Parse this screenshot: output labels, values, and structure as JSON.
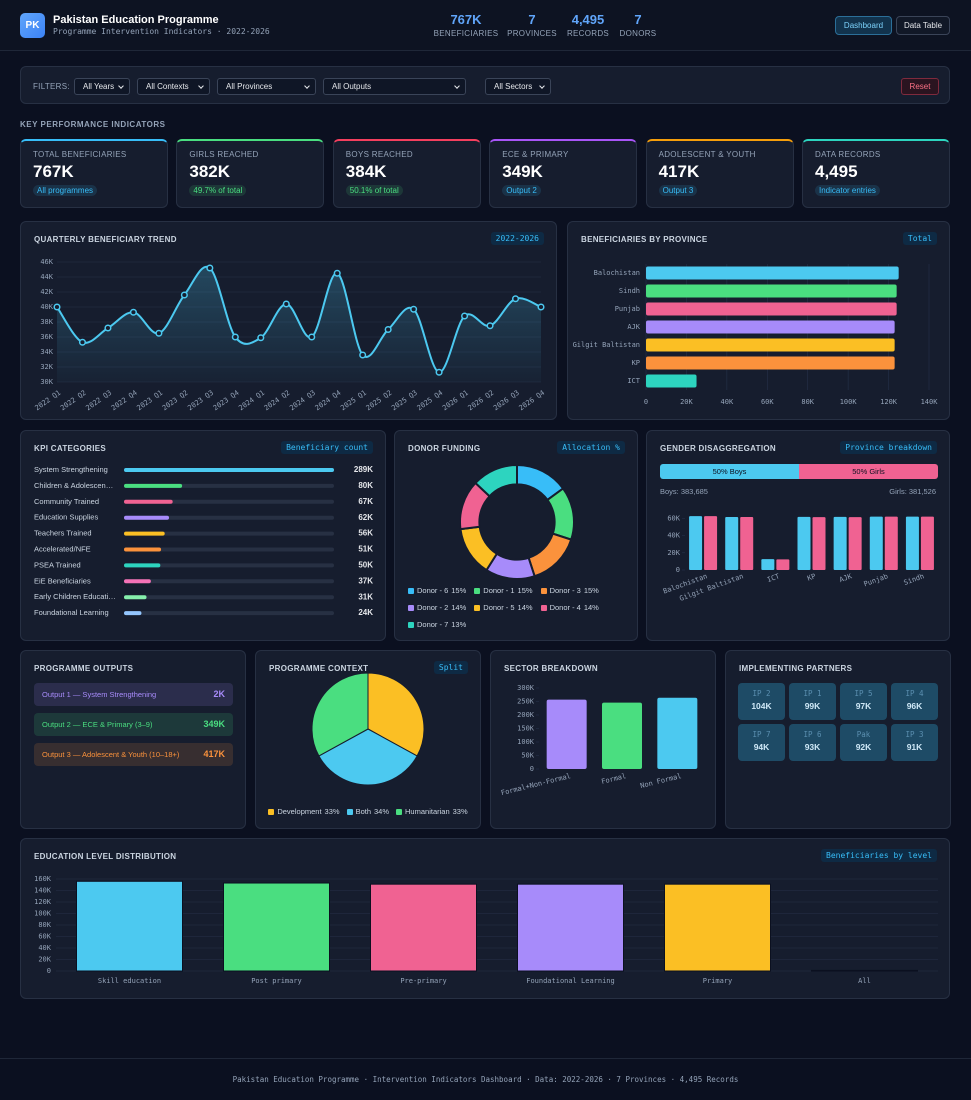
{
  "header": {
    "logo": "PK",
    "title": "Pakistan Education Programme",
    "subtitle": "Programme Intervention Indicators · 2022-2026",
    "stats": [
      {
        "value": "767K",
        "label": "BENEFICIARIES"
      },
      {
        "value": "7",
        "label": "PROVINCES"
      },
      {
        "value": "4,495",
        "label": "RECORDS"
      },
      {
        "value": "7",
        "label": "DONORS"
      }
    ],
    "tabs": [
      "Dashboard",
      "Data Table"
    ]
  },
  "filters": {
    "label": "FILTERS:",
    "selects": [
      "All Years",
      "All Contexts",
      "All Provinces",
      "All Outputs",
      "All Sectors"
    ],
    "reset": "Reset"
  },
  "kpi": {
    "heading": "KEY PERFORMANCE INDICATORS",
    "cards": [
      {
        "label": "TOTAL BENEFICIARIES",
        "value": "767K",
        "note": "All programmes",
        "color": "#38bdf8",
        "note_color": "#38bdf8"
      },
      {
        "label": "GIRLS REACHED",
        "value": "382K",
        "note": "49.7% of total",
        "color": "#4ade80",
        "note_color": "#4ade80"
      },
      {
        "label": "BOYS REACHED",
        "value": "384K",
        "note": "50.1% of total",
        "color": "#f43f5e",
        "note_color": "#4ade80"
      },
      {
        "label": "ECE & PRIMARY",
        "value": "349K",
        "note": "Output 2",
        "color": "#a855f7",
        "note_color": "#38bdf8"
      },
      {
        "label": "ADOLESCENT & YOUTH",
        "value": "417K",
        "note": "Output 3",
        "color": "#f59e0b",
        "note_color": "#38bdf8"
      },
      {
        "label": "DATA RECORDS",
        "value": "4,495",
        "note": "Indicator entries",
        "color": "#2dd4bf",
        "note_color": "#38bdf8"
      }
    ]
  },
  "trend": {
    "type": "line",
    "title": "QUARTERLY BENEFICIARY TREND",
    "badge": "2022-2026",
    "categories": [
      "2022 Q1",
      "2022 Q2",
      "2022 Q3",
      "2022 Q4",
      "2023 Q1",
      "2023 Q2",
      "2023 Q3",
      "2023 Q4",
      "2024 Q1",
      "2024 Q2",
      "2024 Q3",
      "2024 Q4",
      "2025 Q1",
      "2025 Q2",
      "2025 Q3",
      "2025 Q4",
      "2026 Q1",
      "2026 Q2",
      "2026 Q3",
      "2026 Q4"
    ],
    "values": [
      40000,
      35300,
      37200,
      39300,
      36500,
      41600,
      45200,
      36000,
      35900,
      40400,
      36000,
      44500,
      33600,
      37000,
      39700,
      31300,
      38800,
      37500,
      41100,
      40000
    ],
    "color": "#4cc9f0",
    "ylim": [
      30000,
      46000
    ],
    "yticks": [
      {
        "value": 30000,
        "label": "30K"
      },
      {
        "value": 32000,
        "label": "32K"
      },
      {
        "value": 34000,
        "label": "34K"
      },
      {
        "value": 36000,
        "label": "36K"
      },
      {
        "value": 38000,
        "label": "38K"
      },
      {
        "value": 40000,
        "label": "40K"
      },
      {
        "value": 42000,
        "label": "42K"
      },
      {
        "value": 44000,
        "label": "44K"
      },
      {
        "value": 46000,
        "label": "46K"
      }
    ],
    "grid": true
  },
  "provinces": {
    "type": "bar",
    "orientation": "horizontal",
    "title": "BENEFICIARIES BY PROVINCE",
    "badge": "Total",
    "categories": [
      "Balochistan",
      "Sindh",
      "Punjab",
      "AJK",
      "Gilgit Baltistan",
      "KP",
      "ICT"
    ],
    "values": [
      125000,
      124000,
      124000,
      123000,
      123000,
      123000,
      25000
    ],
    "colors": [
      "#4cc9f0",
      "#4ade80",
      "#f06292",
      "#a78bfa",
      "#fbbf24",
      "#fb923c",
      "#2dd4bf"
    ],
    "xlim": [
      0,
      140000
    ],
    "xticks": [
      0,
      {
        "value": 20000,
        "label": "20K"
      },
      {
        "value": 40000,
        "label": "40K"
      },
      {
        "value": 60000,
        "label": "60K"
      },
      {
        "value": 80000,
        "label": "80K"
      },
      {
        "value": 100000,
        "label": "100K"
      },
      {
        "value": 120000,
        "label": "120K"
      },
      {
        "value": 140000,
        "label": "140K"
      }
    ],
    "grid": true
  },
  "kpi_categories": {
    "type": "bar",
    "title": "KPI CATEGORIES",
    "badge": "Beneficiary count",
    "categories": [
      "System Strengthening",
      "Children & Adolescen…",
      "Community Trained",
      "Education Supplies",
      "Teachers Trained",
      "Accelerated/NFE",
      "PSEA Trained",
      "EiE Beneficiaries",
      "Early Children Educati…",
      "Foundational Learning"
    ],
    "values": [
      289000,
      80000,
      67000,
      62000,
      56000,
      51000,
      50000,
      37000,
      31000,
      24000
    ],
    "value_labels": [
      "289K",
      "80K",
      "67K",
      "62K",
      "56K",
      "51K",
      "50K",
      "37K",
      "31K",
      "24K"
    ],
    "colors": [
      "#4cc9f0",
      "#4ade80",
      "#f06292",
      "#a78bfa",
      "#fbbf24",
      "#fb923c",
      "#2dd4bf",
      "#f472b6",
      "#86efac",
      "#93c5fd"
    ]
  },
  "donors": {
    "type": "donut",
    "title": "DONOR FUNDING",
    "badge": "Allocation %",
    "categories": [
      "Donor - 6",
      "Donor - 1",
      "Donor - 3",
      "Donor - 2",
      "Donor - 5",
      "Donor - 4",
      "Donor - 7"
    ],
    "values": [
      15,
      15,
      15,
      14,
      14,
      14,
      13
    ],
    "value_labels": [
      "15%",
      "15%",
      "15%",
      "14%",
      "14%",
      "14%",
      "13%"
    ],
    "colors": [
      "#38bdf8",
      "#4ade80",
      "#fb923c",
      "#a78bfa",
      "#fbbf24",
      "#f06292",
      "#2dd4bf"
    ]
  },
  "gender": {
    "title": "GENDER DISAGGREGATION",
    "badge": "Province breakdown",
    "split": {
      "values": [
        50,
        50
      ],
      "value_labels": [
        "50% Boys",
        "50% Girls"
      ],
      "colors": [
        "#4cc9f0",
        "#f06292"
      ]
    },
    "totals": [
      "Boys: 383,685",
      "Girls: 381,526"
    ],
    "chart": {
      "type": "bar",
      "categories": [
        "Balochistan",
        "Gilgit Baltistan",
        "ICT",
        "KP",
        "AJK",
        "Punjab",
        "Sindh"
      ],
      "series": [
        {
          "color": "#4cc9f0",
          "values": [
            62500,
            61500,
            12600,
            61600,
            61600,
            62000,
            62000
          ]
        },
        {
          "color": "#f06292",
          "values": [
            62500,
            61500,
            12400,
            61400,
            61400,
            62000,
            62000
          ]
        }
      ],
      "ylim": [
        0,
        65000
      ],
      "yticks": [
        0,
        {
          "value": 20000,
          "label": "20K"
        },
        {
          "value": 40000,
          "label": "40K"
        },
        {
          "value": 60000,
          "label": "60K"
        }
      ]
    }
  },
  "outputs": {
    "title": "PROGRAMME OUTPUTS",
    "items": [
      {
        "label": "Output 1 — System Strengthening",
        "value": "2K",
        "color": "#a78bfa"
      },
      {
        "label": "Output 2 — ECE & Primary (3–9)",
        "value": "349K",
        "color": "#4ade80"
      },
      {
        "label": "Output 3 — Adolescent & Youth (10–18+)",
        "value": "417K",
        "color": "#fb923c"
      }
    ]
  },
  "context": {
    "type": "pie",
    "title": "PROGRAMME CONTEXT",
    "badge": "Split",
    "categories": [
      "Development",
      "Both",
      "Humanitarian"
    ],
    "values": [
      33,
      34,
      33
    ],
    "value_labels": [
      "33%",
      "34%",
      "33%"
    ],
    "colors": [
      "#fbbf24",
      "#4cc9f0",
      "#4ade80"
    ]
  },
  "sectors": {
    "type": "bar",
    "title": "SECTOR BREAKDOWN",
    "categories": [
      "Formal+Non-Formal",
      "Formal",
      "Non Formal"
    ],
    "values": [
      257000,
      246000,
      264000
    ],
    "colors": [
      "#a78bfa",
      "#4ade80",
      "#4cc9f0"
    ],
    "ylim": [
      0,
      300000
    ],
    "yticks": [
      0,
      {
        "value": 50000,
        "label": "50K"
      },
      {
        "value": 100000,
        "label": "100K"
      },
      {
        "value": 150000,
        "label": "150K"
      },
      {
        "value": 200000,
        "label": "200K"
      },
      {
        "value": 250000,
        "label": "250K"
      },
      {
        "value": 300000,
        "label": "300K"
      }
    ]
  },
  "partners": {
    "title": "IMPLEMENTING PARTNERS",
    "items": [
      {
        "name": "IP 2",
        "value": "104K"
      },
      {
        "name": "IP 1",
        "value": "99K"
      },
      {
        "name": "IP 5",
        "value": "97K"
      },
      {
        "name": "IP 4",
        "value": "96K"
      },
      {
        "name": "IP 7",
        "value": "94K"
      },
      {
        "name": "IP 6",
        "value": "93K"
      },
      {
        "name": "Pak",
        "value": "92K"
      },
      {
        "name": "IP 3",
        "value": "91K"
      }
    ]
  },
  "education": {
    "type": "bar",
    "title": "EDUCATION LEVEL DISTRIBUTION",
    "badge": "Beneficiaries by level",
    "categories": [
      "Skill education",
      "Post primary",
      "Pre-primary",
      "Foundational Learning",
      "Primary",
      "All"
    ],
    "values": [
      156000,
      153000,
      151000,
      151000,
      151000,
      1000
    ],
    "colors": [
      "#4cc9f0",
      "#4ade80",
      "#f06292",
      "#a78bfa",
      "#fbbf24",
      "#fb923c"
    ],
    "ylim": [
      0,
      160000
    ],
    "yticks": [
      0,
      {
        "value": 20000,
        "label": "20K"
      },
      {
        "value": 40000,
        "label": "40K"
      },
      {
        "value": 60000,
        "label": "60K"
      },
      {
        "value": 80000,
        "label": "80K"
      },
      {
        "value": 100000,
        "label": "100K"
      },
      {
        "value": 120000,
        "label": "120K"
      },
      {
        "value": 140000,
        "label": "140K"
      },
      {
        "value": 160000,
        "label": "160K"
      }
    ],
    "grid": true
  },
  "footer": "Pakistan Education Programme · Intervention Indicators Dashboard · Data: 2022-2026 · 7 Provinces · 4,495 Records"
}
